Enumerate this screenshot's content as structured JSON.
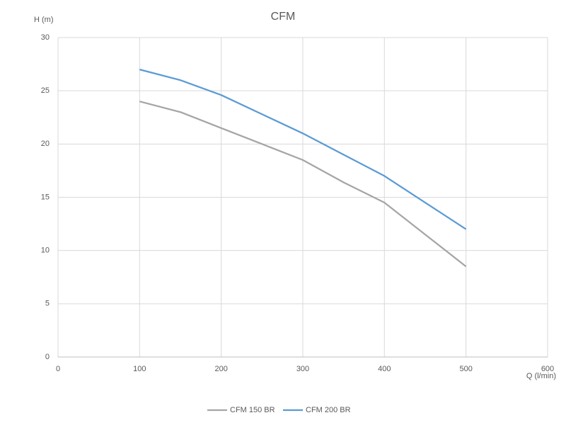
{
  "chart_data": {
    "type": "line",
    "title": "CFM",
    "x_label": "Q (l/min)",
    "y_label": "H (m)",
    "x": [
      100,
      150,
      200,
      250,
      300,
      350,
      400,
      450,
      500
    ],
    "series": [
      {
        "name": "CFM 150 BR",
        "color": "#a5a5a5",
        "values": [
          24,
          23,
          21.5,
          20,
          18.5,
          16.4,
          14.5,
          11.5,
          8.5
        ]
      },
      {
        "name": "CFM 200 BR",
        "color": "#5b9bd5",
        "values": [
          27,
          26,
          24.6,
          22.8,
          21,
          19,
          17,
          14.5,
          12
        ]
      }
    ],
    "xlim": [
      0,
      600
    ],
    "xticks": [
      0,
      100,
      200,
      300,
      400,
      500,
      600
    ],
    "ylim": [
      0,
      30
    ],
    "yticks": [
      0,
      5,
      10,
      15,
      20,
      25,
      30
    ],
    "grid": true,
    "legend": "bottom"
  }
}
